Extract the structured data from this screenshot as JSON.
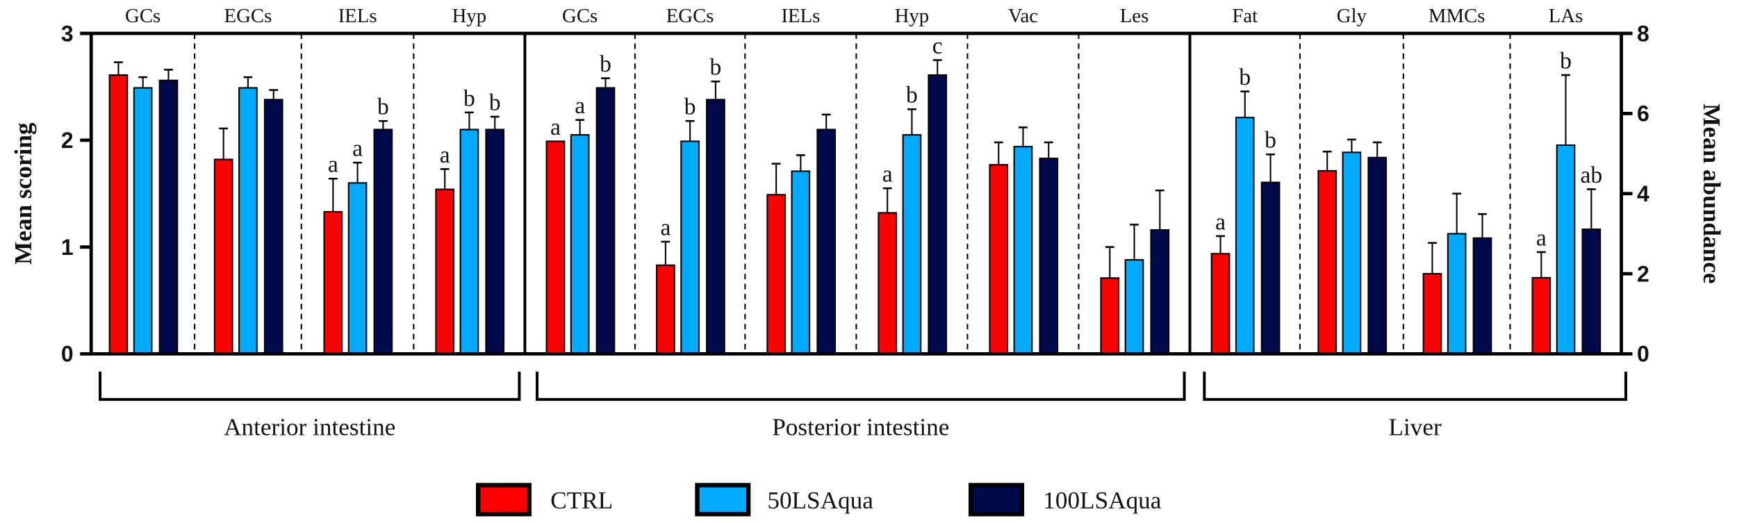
{
  "chart_data": {
    "type": "bar",
    "ylabel_left": "Mean scoring",
    "ylabel_right": "Mean abundance",
    "ylim_left": [
      0,
      3
    ],
    "ylim_right": [
      0,
      8
    ],
    "yticks_left": [
      "0",
      "1",
      "2",
      "3"
    ],
    "yticks_right": [
      "0",
      "2",
      "4",
      "6",
      "8"
    ],
    "legend_position": "bottom",
    "series": [
      {
        "name": "CTRL",
        "color": "#ff0000"
      },
      {
        "name": "50LSAqua",
        "color": "#00aaff"
      },
      {
        "name": "100LSAqua",
        "color": "#000a4a"
      }
    ],
    "groups": [
      {
        "name": "Anterior intestine",
        "axis": "left",
        "categories": [
          {
            "label": "GCs",
            "values": [
              2.61,
              2.49,
              2.56
            ],
            "errors": [
              0.12,
              0.1,
              0.1
            ],
            "letters": [
              "",
              "",
              ""
            ]
          },
          {
            "label": "EGCs",
            "values": [
              1.82,
              2.49,
              2.38
            ],
            "errors": [
              0.29,
              0.1,
              0.09
            ],
            "letters": [
              "",
              "",
              ""
            ]
          },
          {
            "label": "IELs",
            "values": [
              1.33,
              1.6,
              2.1
            ],
            "errors": [
              0.31,
              0.19,
              0.08
            ],
            "letters": [
              "a",
              "a",
              "b"
            ]
          },
          {
            "label": "Hyp",
            "values": [
              1.54,
              2.1,
              2.1
            ],
            "errors": [
              0.19,
              0.16,
              0.12
            ],
            "letters": [
              "a",
              "b",
              "b"
            ]
          }
        ]
      },
      {
        "name": "Posterior intestine",
        "axis": "left",
        "categories": [
          {
            "label": "GCs",
            "values": [
              1.99,
              2.05,
              2.49
            ],
            "errors": [
              0.0,
              0.14,
              0.09
            ],
            "letters": [
              "a",
              "a",
              "b"
            ]
          },
          {
            "label": "EGCs",
            "values": [
              0.83,
              1.99,
              2.38
            ],
            "errors": [
              0.22,
              0.19,
              0.17
            ],
            "letters": [
              "a",
              "b",
              "b"
            ]
          },
          {
            "label": "IELs",
            "values": [
              1.49,
              1.71,
              2.1
            ],
            "errors": [
              0.29,
              0.15,
              0.14
            ],
            "letters": [
              "",
              "",
              ""
            ]
          },
          {
            "label": "Hyp",
            "values": [
              1.32,
              2.05,
              2.61
            ],
            "errors": [
              0.23,
              0.24,
              0.14
            ],
            "letters": [
              "a",
              "b",
              "c"
            ]
          },
          {
            "label": "Vac",
            "values": [
              1.77,
              1.94,
              1.83
            ],
            "errors": [
              0.21,
              0.18,
              0.15
            ],
            "letters": [
              "",
              "",
              ""
            ]
          },
          {
            "label": "Les",
            "values": [
              0.71,
              0.88,
              1.16
            ],
            "errors": [
              0.29,
              0.33,
              0.37
            ],
            "letters": [
              "",
              "",
              ""
            ]
          }
        ]
      },
      {
        "name": "Liver",
        "axis": "right",
        "categories": [
          {
            "label": "Fat",
            "values": [
              2.5,
              5.9,
              4.28
            ],
            "errors": [
              0.44,
              0.65,
              0.7
            ],
            "letters": [
              "a",
              "b",
              "b"
            ]
          },
          {
            "label": "Gly",
            "values": [
              4.57,
              5.03,
              4.9
            ],
            "errors": [
              0.48,
              0.32,
              0.38
            ],
            "letters": [
              "",
              "",
              ""
            ]
          },
          {
            "label": "MMCs",
            "values": [
              2.0,
              3.0,
              2.89
            ],
            "errors": [
              0.77,
              1.0,
              0.6
            ],
            "letters": [
              "",
              "",
              ""
            ]
          },
          {
            "label": "LAs",
            "values": [
              1.9,
              5.21,
              3.11
            ],
            "errors": [
              0.64,
              1.75,
              1.0
            ],
            "letters": [
              "a",
              "b",
              "ab"
            ]
          }
        ]
      }
    ]
  }
}
